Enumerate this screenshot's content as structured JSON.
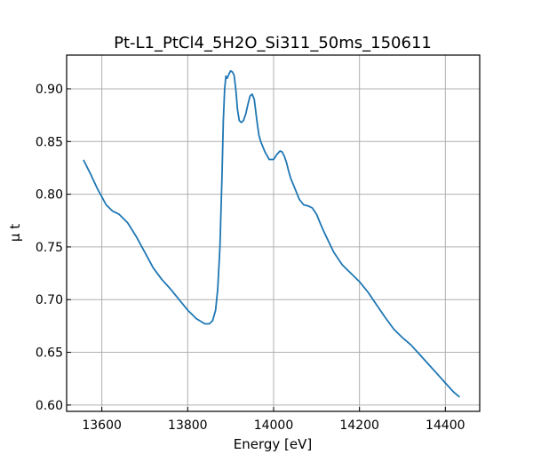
{
  "chart_data": {
    "type": "line",
    "title": "Pt-L1_PtCl4_5H2O_Si311_50ms_150611",
    "xlabel": "Energy [eV]",
    "ylabel": "μ t",
    "xlim": [
      13518,
      14480
    ],
    "ylim": [
      0.594,
      0.932
    ],
    "xticks": [
      13600,
      13800,
      14000,
      14200,
      14400
    ],
    "yticks": [
      0.6,
      0.65,
      0.7,
      0.75,
      0.8,
      0.85,
      0.9
    ],
    "xtick_labels": [
      "13600",
      "13800",
      "14000",
      "14200",
      "14400"
    ],
    "ytick_labels": [
      "0.60",
      "0.65",
      "0.70",
      "0.75",
      "0.80",
      "0.85",
      "0.90"
    ],
    "grid": true,
    "color": "#1f77b4",
    "series": [
      {
        "x": [
          13558,
          13575,
          13590,
          13610,
          13625,
          13640,
          13660,
          13680,
          13700,
          13720,
          13740,
          13760,
          13780,
          13800,
          13820,
          13840,
          13850,
          13858,
          13865,
          13870,
          13875,
          13880,
          13883,
          13886,
          13889,
          13892,
          13896,
          13900,
          13904,
          13908,
          13912,
          13916,
          13920,
          13925,
          13930,
          13935,
          13940,
          13945,
          13950,
          13955,
          13958,
          13962,
          13966,
          13970,
          13975,
          13980,
          13990,
          14000,
          14008,
          14015,
          14020,
          14025,
          14030,
          14035,
          14040,
          14050,
          14060,
          14070,
          14080,
          14090,
          14100,
          14110,
          14120,
          14140,
          14160,
          14180,
          14200,
          14220,
          14240,
          14260,
          14280,
          14300,
          14320,
          14340,
          14360,
          14380,
          14400,
          14420,
          14432
        ],
        "y": [
          0.832,
          0.818,
          0.805,
          0.79,
          0.784,
          0.781,
          0.773,
          0.76,
          0.745,
          0.73,
          0.719,
          0.71,
          0.7,
          0.69,
          0.682,
          0.677,
          0.677,
          0.68,
          0.69,
          0.71,
          0.75,
          0.82,
          0.87,
          0.9,
          0.912,
          0.91,
          0.914,
          0.917,
          0.916,
          0.913,
          0.9,
          0.88,
          0.87,
          0.868,
          0.87,
          0.876,
          0.885,
          0.893,
          0.895,
          0.89,
          0.88,
          0.867,
          0.856,
          0.85,
          0.845,
          0.84,
          0.833,
          0.833,
          0.838,
          0.841,
          0.84,
          0.836,
          0.83,
          0.822,
          0.815,
          0.805,
          0.795,
          0.79,
          0.789,
          0.787,
          0.781,
          0.771,
          0.762,
          0.745,
          0.733,
          0.725,
          0.717,
          0.707,
          0.695,
          0.683,
          0.672,
          0.664,
          0.657,
          0.648,
          0.639,
          0.63,
          0.621,
          0.612,
          0.608
        ]
      }
    ]
  }
}
